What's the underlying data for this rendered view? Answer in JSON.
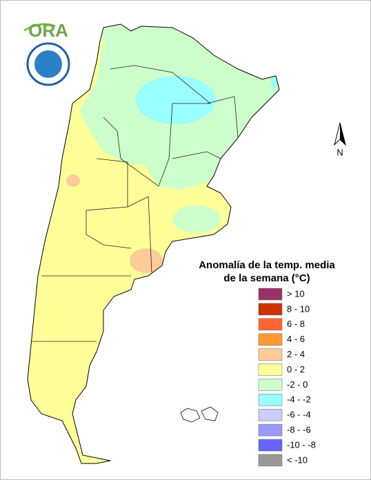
{
  "logo": {
    "text": "ORA"
  },
  "compass": {
    "label": "N"
  },
  "legend": {
    "title": [
      "Anomalía de la temp. media",
      "de la semana (°C)"
    ],
    "items": [
      {
        "label": "> 10",
        "color": "#993366"
      },
      {
        "label": "8 - 10",
        "color": "#cc3300"
      },
      {
        "label": "6 - 8",
        "color": "#ff6633"
      },
      {
        "label": "4 - 6",
        "color": "#ff9933"
      },
      {
        "label": "2 - 4",
        "color": "#ffcc99"
      },
      {
        "label": "0 - 2",
        "color": "#ffff99"
      },
      {
        "label": "-2 - 0",
        "color": "#ccffcc"
      },
      {
        "label": "-4 - -2",
        "color": "#99ffff"
      },
      {
        "label": "-6 - -4",
        "color": "#ccccff"
      },
      {
        "label": "-8 - -6",
        "color": "#9999ff"
      },
      {
        "label": "-10 - -8",
        "color": "#6666ff"
      },
      {
        "label": "< -10",
        "color": "#999999"
      }
    ]
  }
}
